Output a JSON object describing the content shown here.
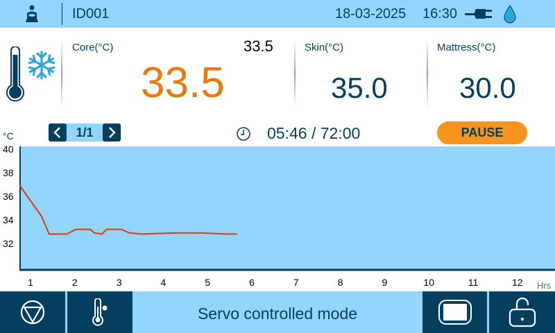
{
  "header": {
    "patient_id": "ID001",
    "date": "18-03-2025",
    "time": "16:30",
    "icons": [
      "baby-patient-icon",
      "power-plug-icon",
      "water-drop-icon"
    ]
  },
  "readings": {
    "core": {
      "label": "Core(°C)",
      "value": "33.5",
      "setpoint": "33.5"
    },
    "skin": {
      "label": "Skin(°C)",
      "value": "35.0"
    },
    "mattress": {
      "label": "Mattress(°C)",
      "value": "30.0"
    },
    "mode_icons": [
      "thermometer-icon",
      "snowflake-icon"
    ]
  },
  "controls": {
    "page": "1/1",
    "elapsed": "05:46 / 72:00",
    "pause_label": "PAUSE"
  },
  "footer": {
    "mode_text": "Servo controlled mode",
    "icons": [
      "stop-icon",
      "thermometer-settings-icon",
      "screen-icon",
      "unlock-icon"
    ]
  },
  "colors": {
    "header_bg": "#93d5fd",
    "dark": "#053f60",
    "core_value": "#e97b0c",
    "pause": "#f7941d",
    "trend_line": "#e03c00"
  },
  "chart_data": {
    "type": "line",
    "ylabel": "°C",
    "xlabel": "Hrs",
    "ylim": [
      30,
      40
    ],
    "xlim": [
      0.75,
      13
    ],
    "yticks": [
      40,
      38,
      36,
      34,
      32
    ],
    "xticks": [
      1,
      2,
      3,
      4,
      5,
      6,
      7,
      8,
      9,
      10,
      11,
      12
    ],
    "grid": false,
    "series": [
      {
        "x": [
          0.76,
          1.25,
          1.42,
          1.82,
          2.02,
          2.35,
          2.44,
          2.61,
          2.72,
          3.05,
          3.23,
          3.52,
          4.35,
          4.86,
          5.4,
          5.67
        ],
        "y": [
          36.9,
          34.3,
          32.8,
          32.8,
          33.2,
          33.2,
          32.9,
          32.8,
          33.2,
          33.2,
          32.9,
          32.8,
          32.9,
          32.9,
          32.8,
          32.8
        ]
      }
    ]
  }
}
